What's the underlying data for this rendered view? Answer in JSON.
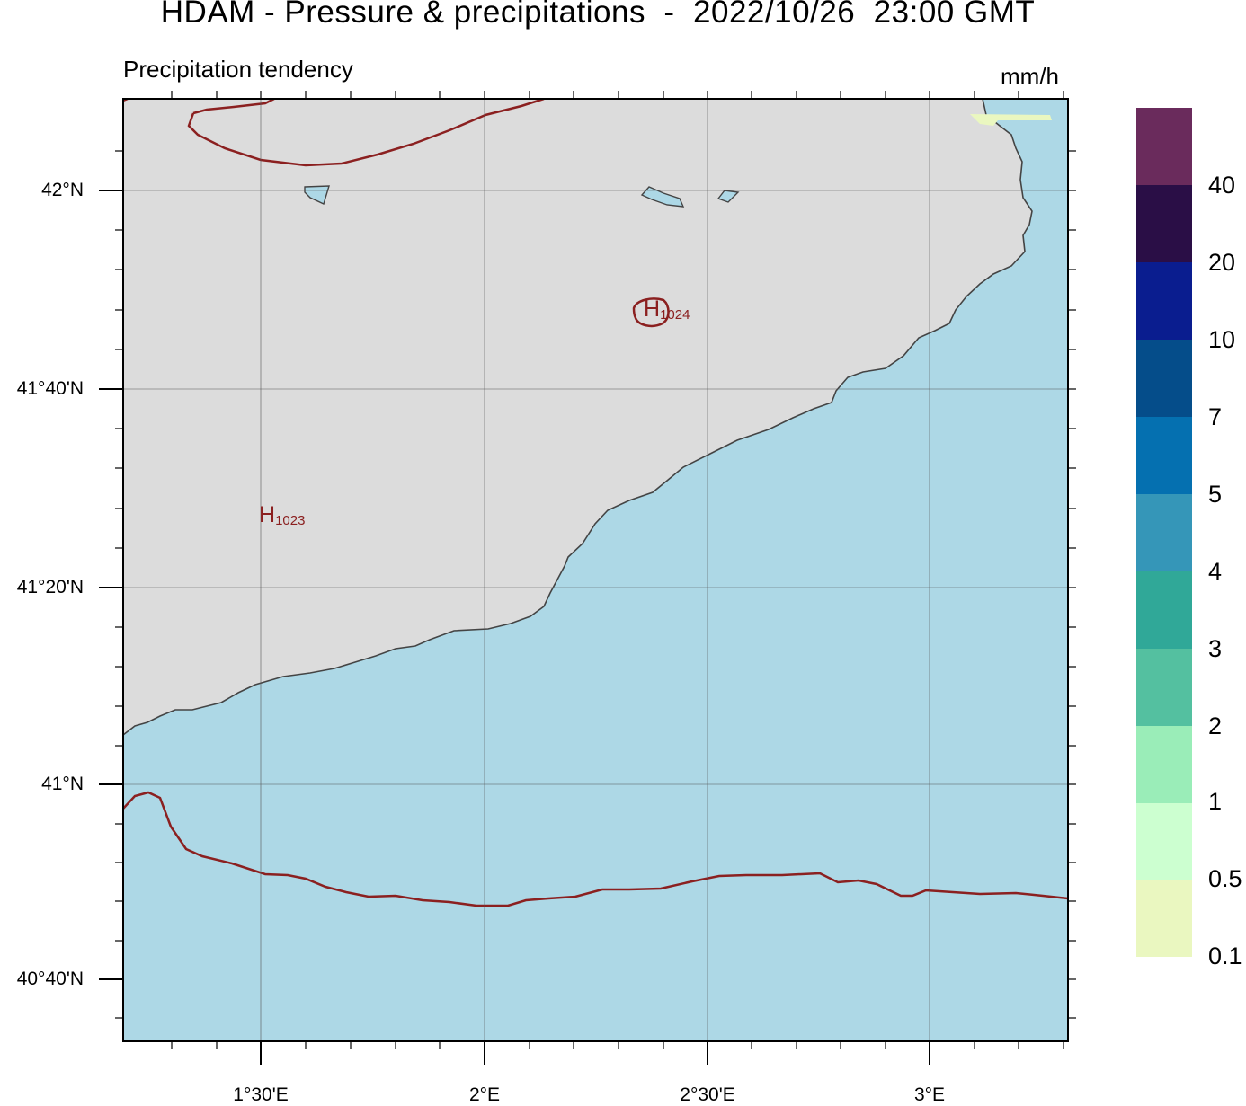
{
  "header": {
    "title": "HDAM - Pressure & precipitations  -  2022/10/26  23:00 GMT",
    "subtitle": "Precipitation tendency",
    "units": "mm/h"
  },
  "map": {
    "latitude_labels": [
      "42°N",
      "41°40'N",
      "41°20'N",
      "41°N",
      "40°40'N"
    ],
    "longitude_labels": [
      "1°30'E",
      "2°E",
      "2°30'E",
      "3°E"
    ],
    "pressure_centers": [
      {
        "symbol": "H",
        "value": "1024"
      },
      {
        "symbol": "H",
        "value": "1023"
      }
    ],
    "colors": {
      "land": "#dcdcdc",
      "sea": "#add8e6",
      "coastline": "#444444",
      "isobar": "#8b2020",
      "precip_0_1": "#eaf7c0"
    }
  },
  "legend": {
    "labels": [
      "40",
      "20",
      "10",
      "7",
      "5",
      "4",
      "3",
      "2",
      "1",
      "0.5",
      "0.1"
    ],
    "colors": [
      "#6a2b5c",
      "#2a0e46",
      "#0a1d8f",
      "#054d8a",
      "#0570b0",
      "#3596b8",
      "#30a898",
      "#54c0a0",
      "#9aedb8",
      "#ccffd0",
      "#eaf7c0"
    ]
  }
}
